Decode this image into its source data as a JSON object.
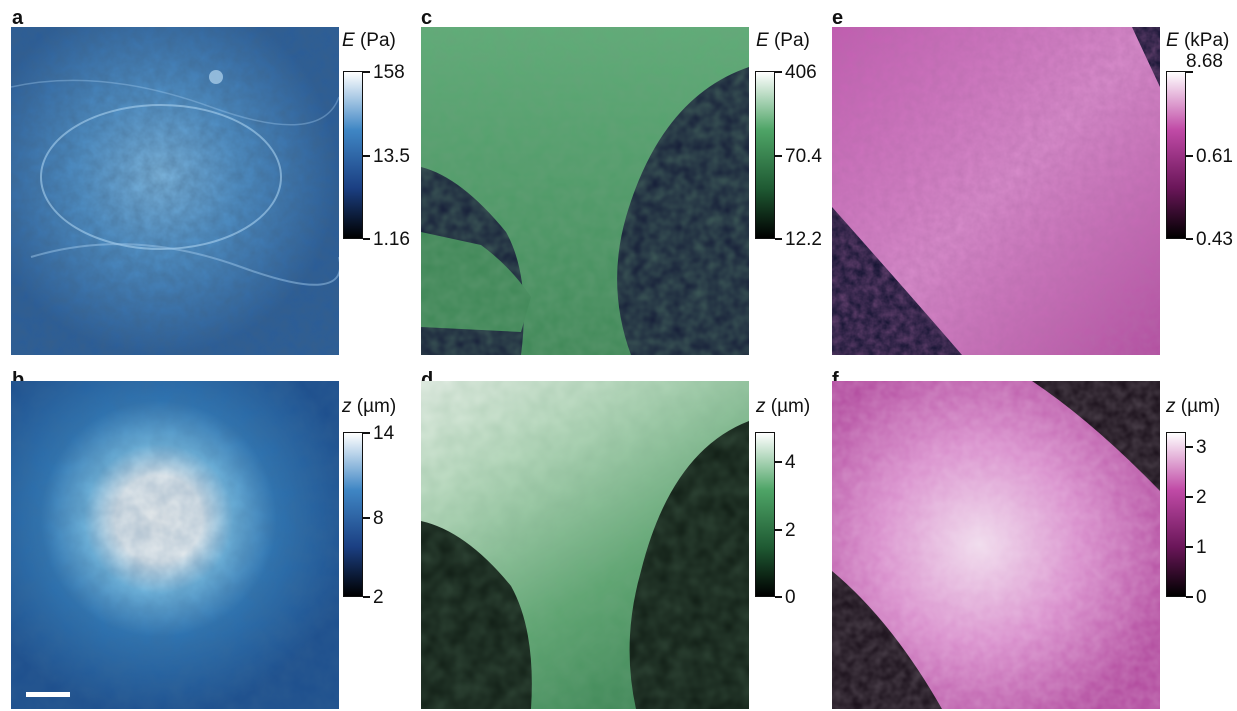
{
  "panels": {
    "a": {
      "letter": "a",
      "cb_var": "E",
      "cb_unit": "(Pa)",
      "ticks": [
        "158",
        "13.5",
        "1.16"
      ],
      "cb_colors": [
        "#000000",
        "#1b3f82",
        "#3f86c4",
        "#ffffff"
      ]
    },
    "b": {
      "letter": "b",
      "cb_var": "z",
      "cb_unit": "(µm)",
      "ticks": [
        "14",
        "8",
        "2"
      ],
      "cb_colors": [
        "#000000",
        "#1b3f82",
        "#3f86c4",
        "#ffffff"
      ]
    },
    "c": {
      "letter": "c",
      "cb_var": "E",
      "cb_unit": "(Pa)",
      "ticks": [
        "406",
        "70.4",
        "12.2"
      ],
      "cb_colors": [
        "#000000",
        "#1f5a33",
        "#4ea466",
        "#ffffff"
      ]
    },
    "d": {
      "letter": "d",
      "cb_var": "z",
      "cb_unit": "(µm)",
      "ticks": [
        "4",
        "2",
        "0"
      ],
      "cb_colors": [
        "#000000",
        "#1f5a33",
        "#4ea466",
        "#ffffff"
      ]
    },
    "e": {
      "letter": "e",
      "cb_var": "E",
      "cb_unit": "(kPa)",
      "ticks": [
        "8.68",
        "0.61",
        "0.43"
      ],
      "cb_colors": [
        "#000000",
        "#6a1659",
        "#c04aa6",
        "#ffffff"
      ]
    },
    "f": {
      "letter": "f",
      "cb_var": "z",
      "cb_unit": "(µm)",
      "ticks": [
        "3",
        "2",
        "1",
        "0"
      ],
      "cb_colors": [
        "#000000",
        "#6a1659",
        "#c04aa6",
        "#ffffff"
      ]
    }
  }
}
